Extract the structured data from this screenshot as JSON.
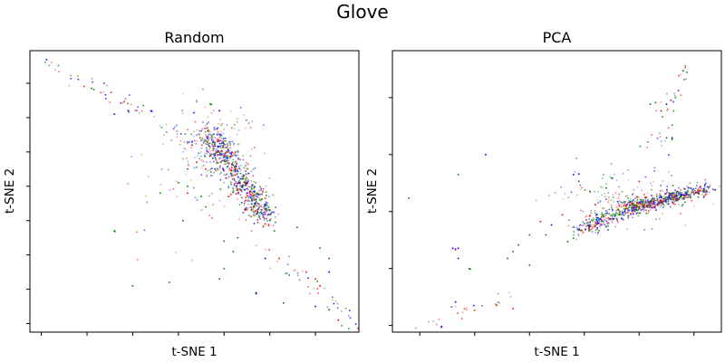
{
  "figure": {
    "title": "Glove"
  },
  "chart_data": [
    {
      "type": "scatter",
      "title": "Random",
      "xlabel": "t-SNE 1",
      "ylabel": "t-SNE 2",
      "xlim": [
        -5.5,
        66.5
      ],
      "ylim": [
        -35.5,
        46.5
      ],
      "xticks": [
        -3,
        7,
        17,
        27,
        37,
        47,
        57
      ],
      "yticks": [
        -33,
        -23,
        -13,
        -3,
        7,
        17,
        27,
        37
      ],
      "tick_labels_shown": false,
      "grid": false,
      "legend": "none",
      "series_colors": [
        "#0000ff",
        "#ff0000",
        "#008000"
      ],
      "clusters": [
        {
          "kind": "band",
          "from": [
            -2,
            43
          ],
          "to": [
            38,
            15
          ],
          "n": 60,
          "spread": 1.2
        },
        {
          "kind": "band",
          "from": [
            34,
            22
          ],
          "to": [
            46,
            -2
          ],
          "n": 650,
          "spread": 1.6
        },
        {
          "kind": "blob",
          "center": [
            34,
            19
          ],
          "n": 180,
          "spread": [
            4,
            6
          ]
        },
        {
          "kind": "band",
          "from": [
            47,
            -12
          ],
          "to": [
            66,
            -34
          ],
          "n": 40,
          "spread": 1.2
        },
        {
          "kind": "blob",
          "center": [
            31,
            5
          ],
          "n": 40,
          "spread": [
            8,
            8
          ]
        },
        {
          "kind": "pts",
          "color": "#008000",
          "pts": [
            [
              8,
              35.5
            ],
            [
              8.5,
              35.2
            ],
            [
              34,
              31
            ],
            [
              34.2,
              30.8
            ],
            [
              35,
              12
            ],
            [
              29,
              12
            ],
            [
              27,
              8
            ],
            [
              32,
              4
            ],
            [
              33,
              1
            ],
            [
              37,
              -9
            ],
            [
              47,
              -3
            ],
            [
              48,
              -6
            ],
            [
              53,
              -5
            ],
            [
              44,
              -24
            ],
            [
              44,
              -24.3
            ],
            [
              50,
              -27
            ],
            [
              58,
              -11
            ],
            [
              60,
              -14
            ],
            [
              13,
              -6
            ],
            [
              13.1,
              -6.2
            ],
            [
              17,
              -22
            ],
            [
              25,
              -21
            ],
            [
              37,
              -17
            ],
            [
              36,
              -20
            ],
            [
              23,
              5
            ],
            [
              28,
              -3
            ],
            [
              40,
              -8
            ],
            [
              29,
              7
            ],
            [
              39,
              -12
            ],
            [
              60,
              -29
            ]
          ]
        },
        {
          "kind": "pts",
          "color": "#0000ff",
          "pts": [
            [
              21,
              29
            ],
            [
              21.2,
              28.8
            ],
            [
              13,
              28
            ],
            [
              16,
              29
            ],
            [
              36,
              29
            ],
            [
              46,
              -14
            ],
            [
              44,
              -24.2
            ],
            [
              60,
              -18
            ],
            [
              57,
              -28
            ],
            [
              35,
              16
            ],
            [
              30,
              20
            ],
            [
              42,
              8
            ]
          ]
        },
        {
          "kind": "pts",
          "color": "#ff0000",
          "pts": [
            [
              29,
              5
            ],
            [
              33,
              12
            ],
            [
              30,
              19
            ],
            [
              46,
              -4
            ],
            [
              55,
              -18
            ],
            [
              58,
              -22
            ],
            [
              57,
              -20
            ],
            [
              62,
              -32
            ],
            [
              49,
              -14
            ],
            [
              31,
              14
            ],
            [
              38,
              4
            ]
          ]
        }
      ]
    },
    {
      "type": "scatter",
      "title": "PCA",
      "xlabel": "t-SNE 1",
      "ylabel": "t-SNE 2",
      "xlim": [
        -13,
        47
      ],
      "ylim": [
        -39,
        45
      ],
      "xticks": [
        -8,
        2,
        12,
        22,
        32,
        42
      ],
      "yticks": [
        -37,
        -20,
        -3,
        14,
        31
      ],
      "tick_labels_shown": false,
      "grid": false,
      "legend": "none",
      "series_colors": [
        "#0000ff",
        "#ff0000",
        "#008000"
      ],
      "clusters": [
        {
          "kind": "band",
          "from": [
            21,
            -9
          ],
          "to": [
            30,
            -2
          ],
          "n": 230,
          "spread": 1.2
        },
        {
          "kind": "band",
          "from": [
            30,
            -2
          ],
          "to": [
            40,
            2
          ],
          "n": 430,
          "spread": 1.0
        },
        {
          "kind": "band",
          "from": [
            40,
            2
          ],
          "to": [
            45,
            4
          ],
          "n": 110,
          "spread": 0.8
        },
        {
          "kind": "blob",
          "center": [
            30,
            1
          ],
          "n": 150,
          "spread": [
            6,
            4
          ]
        },
        {
          "kind": "band",
          "from": [
            35,
            15
          ],
          "to": [
            40,
            40
          ],
          "n": 35,
          "spread": 1.0
        },
        {
          "kind": "band",
          "from": [
            -8,
            -38
          ],
          "to": [
            10,
            -27
          ],
          "n": 25,
          "spread": 1.2
        },
        {
          "kind": "pts",
          "color": "#008000",
          "pts": [
            [
              -10,
              1
            ],
            [
              -1,
              8
            ],
            [
              1,
              -20
            ],
            [
              1.2,
              -20.2
            ],
            [
              9,
              -15
            ],
            [
              12,
              -10
            ],
            [
              15,
              -10
            ],
            [
              19,
              -12
            ],
            [
              20,
              -11
            ],
            [
              26,
              4
            ],
            [
              34,
              29
            ],
            [
              35,
              29.5
            ],
            [
              37,
              19
            ],
            [
              38,
              18.5
            ],
            [
              40,
              39
            ],
            [
              21,
              6
            ],
            [
              10,
              -13
            ],
            [
              27,
              7
            ],
            [
              12,
              -19
            ],
            [
              8,
              -17
            ],
            [
              23,
              3
            ]
          ]
        },
        {
          "kind": "pts",
          "color": "#0000ff",
          "pts": [
            [
              -2,
              -14
            ],
            [
              -1.5,
              -14.2
            ],
            [
              -1,
              -14
            ],
            [
              -1.5,
              -30
            ],
            [
              -1,
              -17
            ],
            [
              20,
              8
            ],
            [
              21,
              8.2
            ],
            [
              37,
              29
            ],
            [
              38,
              19
            ],
            [
              44,
              5
            ],
            [
              4,
              14
            ],
            [
              16,
              -7
            ]
          ]
        },
        {
          "kind": "pts",
          "color": "#ff0000",
          "pts": [
            [
              -1.5,
              -14.4
            ],
            [
              18,
              -4
            ],
            [
              24,
              -1
            ],
            [
              36,
              27
            ],
            [
              6,
              -31
            ],
            [
              9,
              -32
            ],
            [
              14,
              -6
            ],
            [
              32,
              6
            ]
          ]
        }
      ]
    }
  ]
}
